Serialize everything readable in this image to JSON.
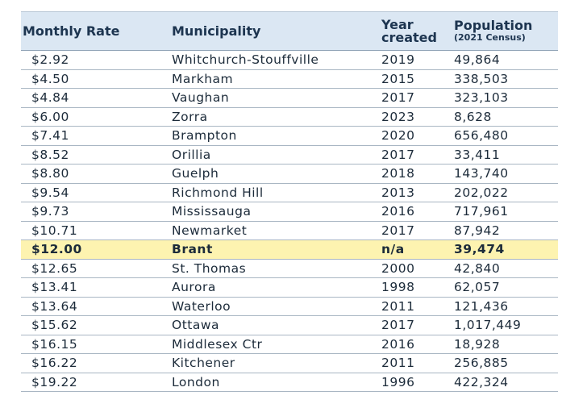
{
  "table": {
    "headers": {
      "rate": "Monthly Rate",
      "municipality": "Municipality",
      "year_line1": "Year",
      "year_line2": "created",
      "population": "Population",
      "population_sub": "(2021 Census)"
    },
    "rows": [
      {
        "rate": "$2.92",
        "municipality": "Whitchurch-Stouffville",
        "year": "2019",
        "population": "49,864"
      },
      {
        "rate": "$4.50",
        "municipality": "Markham",
        "year": "2015",
        "population": "338,503"
      },
      {
        "rate": "$4.84",
        "municipality": "Vaughan",
        "year": "2017",
        "population": "323,103"
      },
      {
        "rate": "$6.00",
        "municipality": "Zorra",
        "year": "2023",
        "population": "8,628"
      },
      {
        "rate": "$7.41",
        "municipality": "Brampton",
        "year": "2020",
        "population": "656,480"
      },
      {
        "rate": "$8.52",
        "municipality": "Orillia",
        "year": "2017",
        "population": "33,411"
      },
      {
        "rate": "$8.80",
        "municipality": "Guelph",
        "year": "2018",
        "population": "143,740"
      },
      {
        "rate": "$9.54",
        "municipality": "Richmond Hill",
        "year": "2013",
        "population": "202,022"
      },
      {
        "rate": "$9.73",
        "municipality": "Mississauga",
        "year": "2016",
        "population": "717,961"
      },
      {
        "rate": "$10.71",
        "municipality": "Newmarket",
        "year": "2017",
        "population": "87,942"
      },
      {
        "rate": "$12.00",
        "municipality": "Brant",
        "year": "n/a",
        "population": "39,474",
        "highlight": true
      },
      {
        "rate": "$12.65",
        "municipality": "St. Thomas",
        "year": "2000",
        "population": "42,840"
      },
      {
        "rate": "$13.41",
        "municipality": "Aurora",
        "year": "1998",
        "population": "62,057"
      },
      {
        "rate": "$13.64",
        "municipality": "Waterloo",
        "year": "2011",
        "population": "121,436"
      },
      {
        "rate": "$15.62",
        "municipality": "Ottawa",
        "year": "2017",
        "population": "1,017,449"
      },
      {
        "rate": "$16.15",
        "municipality": "Middlesex Ctr",
        "year": "2016",
        "population": "18,928"
      },
      {
        "rate": "$16.22",
        "municipality": "Kitchener",
        "year": "2011",
        "population": "256,885"
      },
      {
        "rate": "$19.22",
        "municipality": "London",
        "year": "1996",
        "population": "422,324"
      }
    ]
  },
  "colors": {
    "header_bg": "#dbe7f3",
    "highlight_bg": "#fdf3b0",
    "text": "#1c2b3a"
  }
}
